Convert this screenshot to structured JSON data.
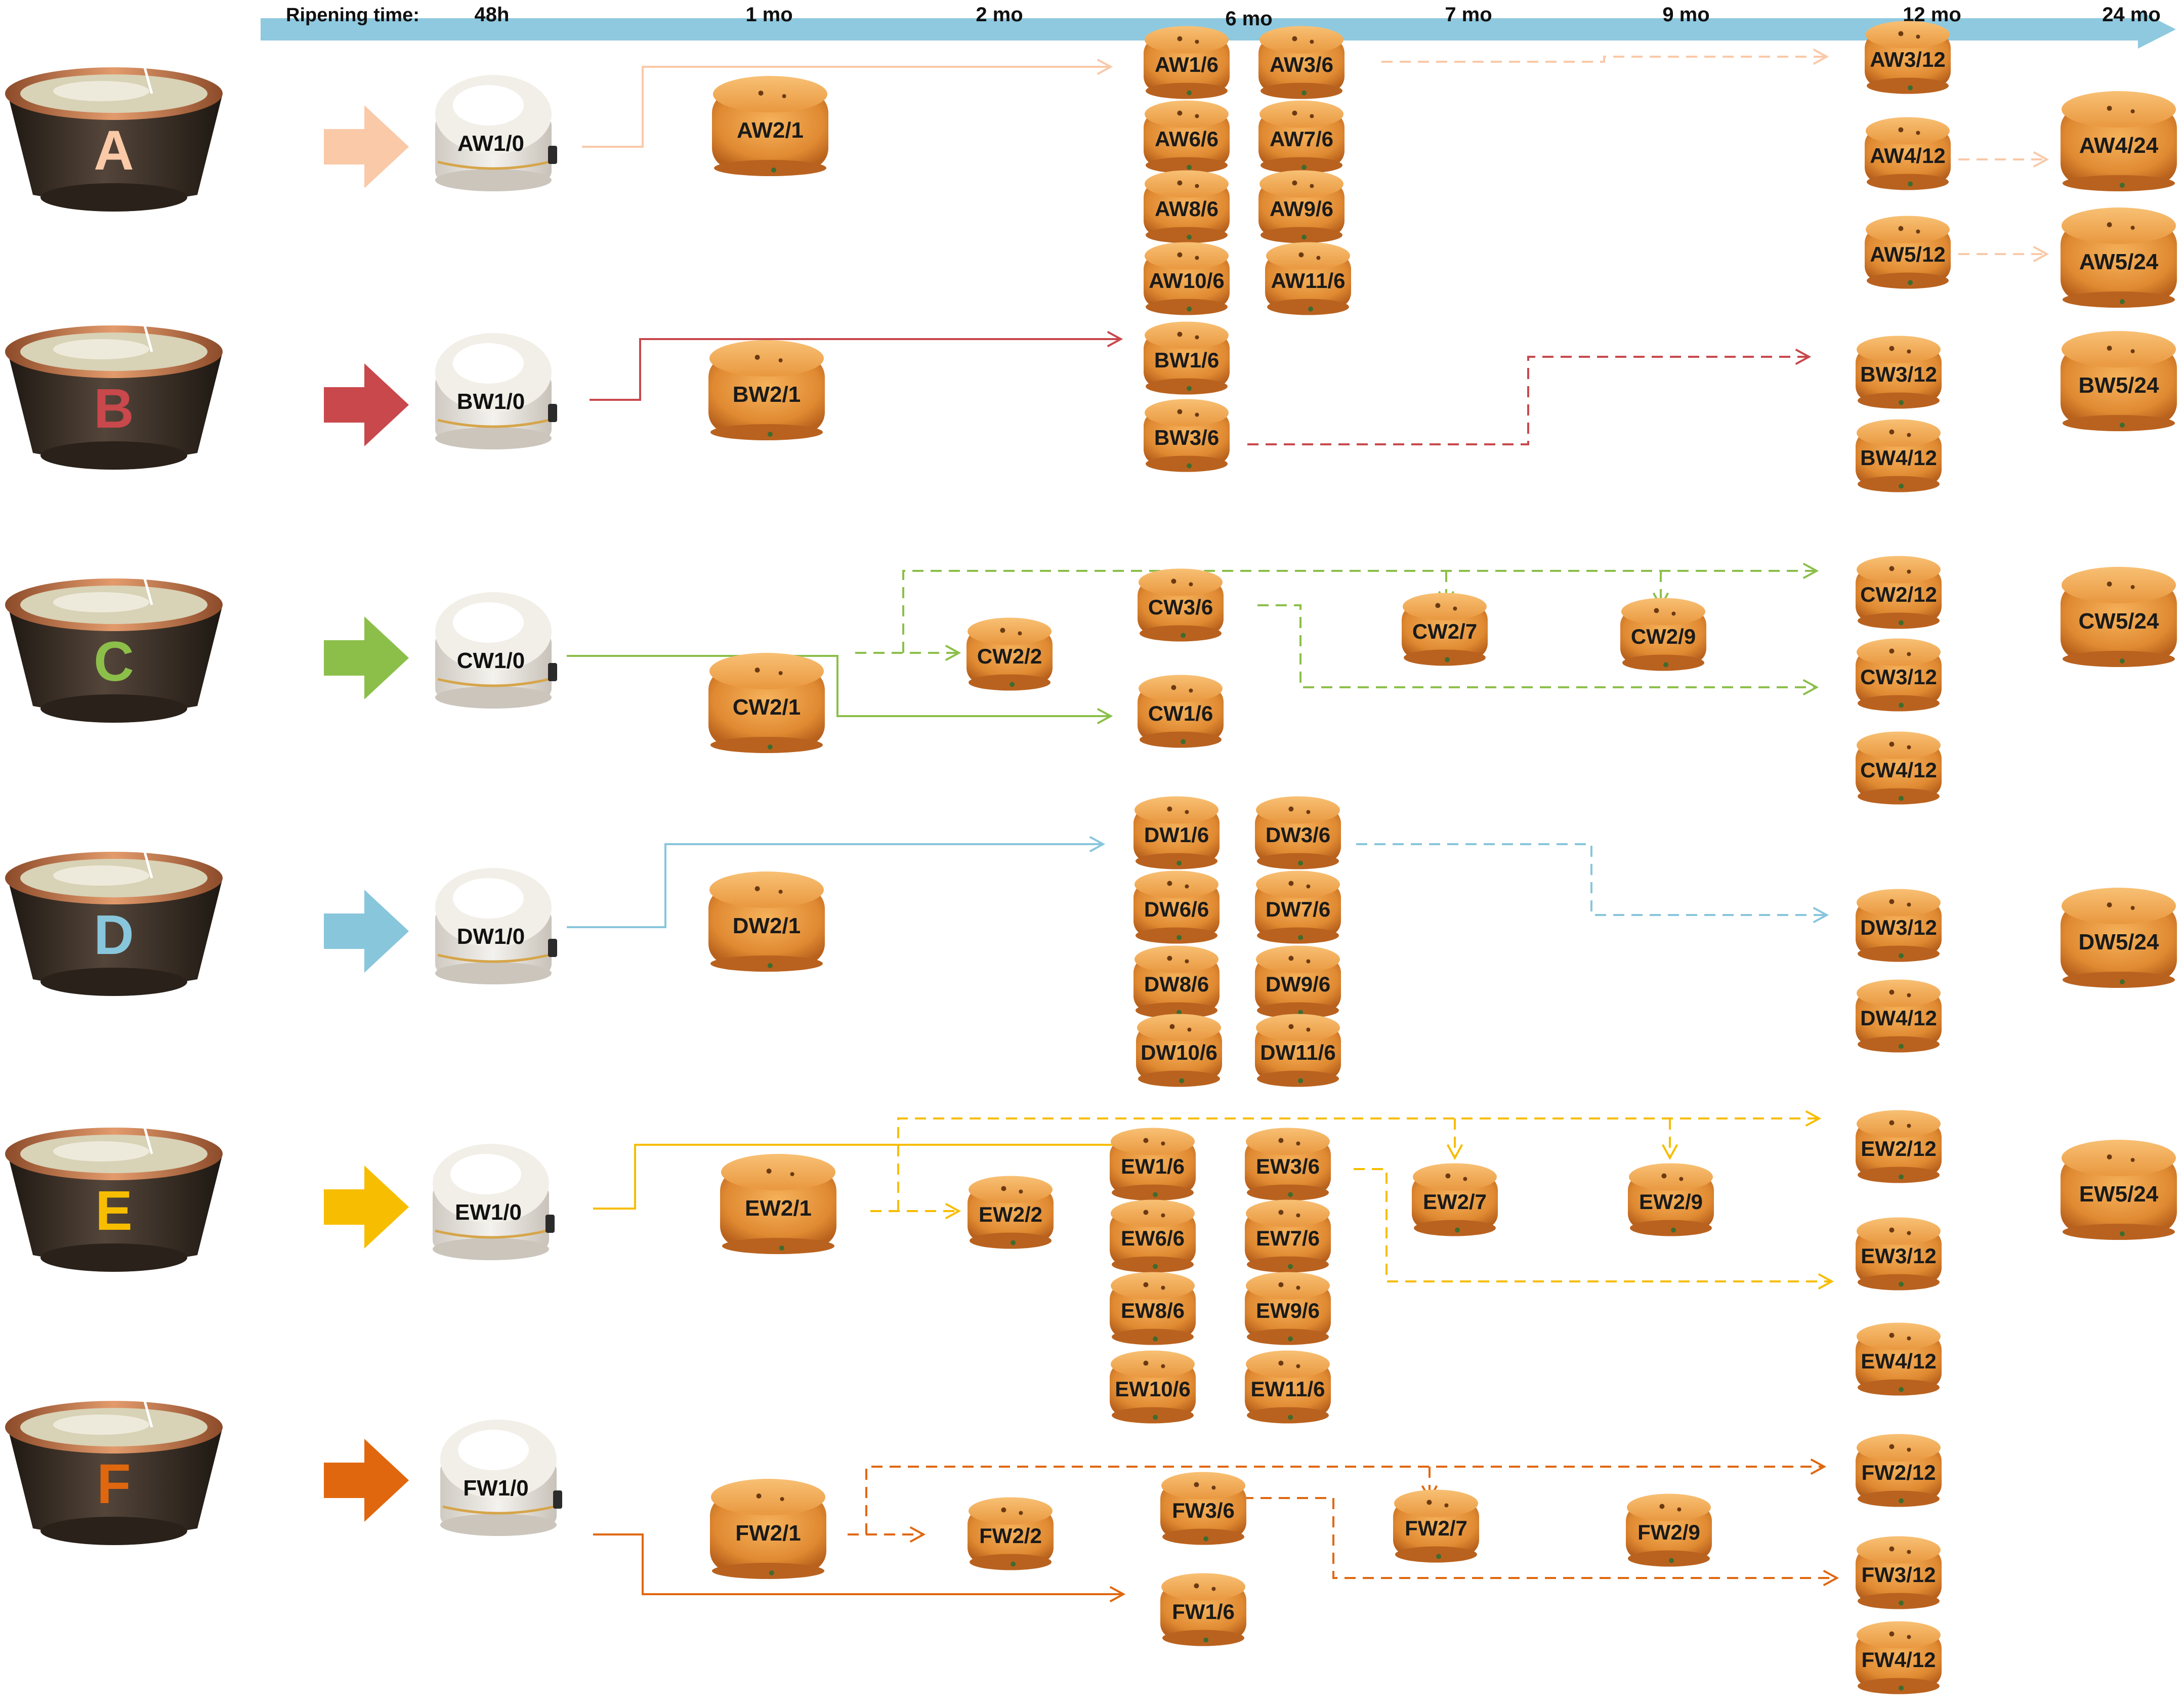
{
  "timeline": {
    "label": "Ripening time:",
    "times": [
      "48h",
      "1 mo",
      "2 mo",
      "6 mo",
      "7 mo",
      "9 mo",
      "12 mo",
      "24 mo"
    ]
  },
  "colors": {
    "A": "#f9c9a8",
    "B": "#c8484c",
    "C": "#8cbf4a",
    "D": "#88c6dc",
    "E": "#f7bd00",
    "F": "#e0670e",
    "axis": "#8ec9df",
    "cheese": "#e08a32",
    "vat": "#3a2e25",
    "rim": "#c9774a",
    "wheel_white": "#ece9e3"
  },
  "vats": [
    {
      "letter": "A",
      "color": "#f9c9a8"
    },
    {
      "letter": "B",
      "color": "#c8484c"
    },
    {
      "letter": "C",
      "color": "#8cbf4a"
    },
    {
      "letter": "D",
      "color": "#88c6dc"
    },
    {
      "letter": "E",
      "color": "#f7bd00"
    },
    {
      "letter": "F",
      "color": "#e0670e"
    }
  ],
  "fresh_wheels": [
    "AW1/0",
    "BW1/0",
    "CW1/0",
    "DW1/0",
    "EW1/0",
    "FW1/0"
  ],
  "cheese_labels": [
    "AW2/1",
    "AW1/6",
    "AW3/6",
    "AW6/6",
    "AW7/6",
    "AW8/6",
    "AW9/6",
    "AW10/6",
    "AW11/6",
    "AW3/12",
    "AW4/12",
    "AW5/12",
    "AW4/24",
    "AW5/24",
    "BW2/1",
    "BW1/6",
    "BW3/6",
    "BW3/12",
    "BW4/12",
    "BW5/24",
    "CW2/1",
    "CW2/2",
    "CW3/6",
    "CW1/6",
    "CW2/7",
    "CW2/9",
    "CW2/12",
    "CW3/12",
    "CW4/12",
    "CW5/24",
    "DW2/1",
    "DW1/6",
    "DW3/6",
    "DW6/6",
    "DW7/6",
    "DW8/6",
    "DW9/6",
    "DW10/6",
    "DW11/6",
    "DW3/12",
    "DW4/12",
    "DW5/24",
    "EW2/1",
    "EW2/2",
    "EW1/6",
    "EW3/6",
    "EW6/6",
    "EW7/6",
    "EW8/6",
    "EW9/6",
    "EW10/6",
    "EW11/6",
    "EW2/7",
    "EW2/9",
    "EW2/12",
    "EW3/12",
    "EW4/12",
    "EW5/24",
    "FW2/1",
    "FW2/2",
    "FW3/6",
    "FW1/6",
    "FW2/7",
    "FW2/9",
    "FW2/12",
    "FW3/12",
    "FW4/12"
  ]
}
